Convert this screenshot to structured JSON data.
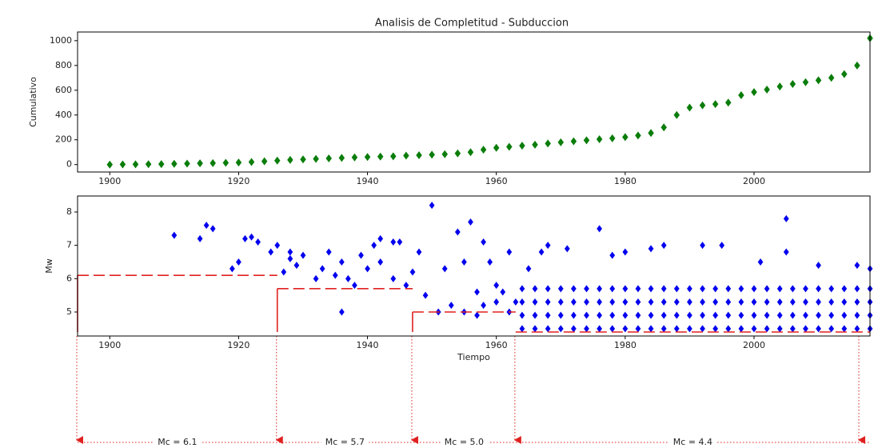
{
  "chart_data": [
    {
      "type": "scatter",
      "title": "Analisis de Completitud - Subduccion",
      "y_label": "Cumulativo",
      "series": [
        {
          "color": "#0a7d0a",
          "x": [
            1900,
            1902,
            1904,
            1906,
            1908,
            1910,
            1912,
            1914,
            1916,
            1918,
            1920,
            1922,
            1924,
            1926,
            1928,
            1930,
            1932,
            1934,
            1936,
            1938,
            1940,
            1942,
            1944,
            1946,
            1948,
            1950,
            1952,
            1954,
            1956,
            1958,
            1960,
            1962,
            1964,
            1966,
            1968,
            1970,
            1972,
            1974,
            1976,
            1978,
            1980,
            1982,
            1984,
            1986,
            1988,
            1990,
            1992,
            1994,
            1996,
            1998,
            2000,
            2002,
            2004,
            2006,
            2008,
            2010,
            2012,
            2014,
            2016,
            2018
          ],
          "values": [
            0,
            1,
            2,
            3,
            4,
            6,
            8,
            10,
            12,
            14,
            17,
            21,
            26,
            32,
            38,
            42,
            46,
            50,
            54,
            58,
            61,
            64,
            67,
            72,
            76,
            80,
            84,
            90,
            100,
            120,
            135,
            143,
            152,
            160,
            170,
            180,
            188,
            196,
            205,
            212,
            222,
            235,
            255,
            300,
            400,
            460,
            478,
            488,
            500,
            560,
            585,
            605,
            630,
            650,
            665,
            680,
            700,
            730,
            800,
            1020
          ]
        }
      ],
      "xlim": [
        1895,
        2018
      ],
      "xticks": [
        1900,
        1920,
        1940,
        1960,
        1980,
        2000
      ],
      "ylim": [
        -60,
        1070
      ],
      "yticks": [
        0,
        200,
        400,
        600,
        800,
        1000
      ]
    },
    {
      "type": "scatter",
      "x_label": "Tiempo",
      "y_label": "Mw",
      "series": [
        {
          "color": "#0000ee",
          "x": [
            1910,
            1914,
            1915,
            1916,
            1919,
            1920,
            1921,
            1922,
            1923,
            1925,
            1926,
            1927,
            1928,
            1928,
            1929,
            1930,
            1932,
            1933,
            1934,
            1935,
            1936,
            1936,
            1937,
            1938,
            1939,
            1940,
            1941,
            1942,
            1942,
            1944,
            1945,
            1944,
            1946,
            1947,
            1948,
            1949,
            1950,
            1951,
            1952,
            1953,
            1954,
            1955,
            1956,
            1957,
            1958,
            1959,
            1960,
            1962,
            1963,
            1965,
            1967,
            1968,
            1971,
            1976,
            1978,
            1980,
            1984,
            1986,
            1992,
            1995,
            2001,
            2005,
            2005,
            2010,
            2016,
            2018,
            1955,
            1958,
            1960,
            1962,
            1961,
            1957,
            1964,
            1964,
            1964,
            1964,
            1966,
            1966,
            1966,
            1966,
            1968,
            1968,
            1968,
            1968,
            1970,
            1970,
            1970,
            1970,
            1972,
            1972,
            1972,
            1972,
            1974,
            1974,
            1974,
            1974,
            1976,
            1976,
            1976,
            1976,
            1978,
            1978,
            1978,
            1978,
            1980,
            1980,
            1980,
            1980,
            1982,
            1982,
            1982,
            1982,
            1984,
            1984,
            1984,
            1984,
            1986,
            1986,
            1986,
            1986,
            1988,
            1988,
            1988,
            1988,
            1990,
            1990,
            1990,
            1990,
            1992,
            1992,
            1992,
            1992,
            1994,
            1994,
            1994,
            1994,
            1996,
            1996,
            1996,
            1996,
            1998,
            1998,
            1998,
            1998,
            2000,
            2000,
            2000,
            2000,
            2002,
            2002,
            2002,
            2002,
            2004,
            2004,
            2004,
            2004,
            2006,
            2006,
            2006,
            2006,
            2008,
            2008,
            2008,
            2008,
            2010,
            2010,
            2010,
            2010,
            2012,
            2012,
            2012,
            2012,
            2014,
            2014,
            2014,
            2014,
            2016,
            2016,
            2016,
            2016,
            2018,
            2018,
            2018,
            2018
          ],
          "values": [
            7.3,
            7.2,
            7.6,
            7.5,
            6.3,
            6.5,
            7.2,
            7.25,
            7.1,
            6.8,
            7.0,
            6.2,
            6.6,
            6.8,
            6.4,
            6.7,
            6.0,
            6.3,
            6.8,
            6.1,
            5.0,
            6.5,
            6.0,
            5.8,
            6.7,
            6.3,
            7.0,
            7.2,
            6.5,
            7.1,
            7.1,
            6.0,
            5.8,
            6.2,
            6.8,
            5.5,
            8.2,
            5.0,
            6.3,
            5.2,
            7.4,
            6.5,
            7.7,
            5.6,
            7.1,
            6.5,
            5.8,
            6.8,
            5.3,
            6.3,
            6.8,
            7.0,
            6.9,
            7.5,
            6.7,
            6.8,
            6.9,
            7.0,
            7.0,
            7.0,
            6.5,
            7.8,
            6.8,
            6.4,
            6.4,
            6.3,
            5.0,
            5.2,
            5.3,
            5.0,
            5.6,
            4.9,
            4.5,
            4.9,
            5.3,
            5.7,
            4.5,
            4.9,
            5.3,
            5.7,
            4.5,
            4.9,
            5.3,
            5.7,
            4.5,
            4.9,
            5.3,
            5.7,
            4.5,
            4.9,
            5.3,
            5.7,
            4.5,
            4.9,
            5.3,
            5.7,
            4.5,
            4.9,
            5.3,
            5.7,
            4.5,
            4.9,
            5.3,
            5.7,
            4.5,
            4.9,
            5.3,
            5.7,
            4.5,
            4.9,
            5.3,
            5.7,
            4.5,
            4.9,
            5.3,
            5.7,
            4.5,
            4.9,
            5.3,
            5.7,
            4.5,
            4.9,
            5.3,
            5.7,
            4.5,
            4.9,
            5.3,
            5.7,
            4.5,
            4.9,
            5.3,
            5.7,
            4.5,
            4.9,
            5.3,
            5.7,
            4.5,
            4.9,
            5.3,
            5.7,
            4.5,
            4.9,
            5.3,
            5.7,
            4.5,
            4.9,
            5.3,
            5.7,
            4.5,
            4.9,
            5.3,
            5.7,
            4.5,
            4.9,
            5.3,
            5.7,
            4.5,
            4.9,
            5.3,
            5.7,
            4.5,
            4.9,
            5.3,
            5.7,
            4.5,
            4.9,
            5.3,
            5.7,
            4.5,
            4.9,
            5.3,
            5.7,
            4.5,
            4.9,
            5.3,
            5.7,
            4.5,
            4.9,
            5.3,
            5.7,
            4.5,
            4.9,
            5.3,
            5.7
          ]
        }
      ],
      "mc_levels": [
        {
          "start": 1895,
          "end": 1926,
          "value": 6.1,
          "label": "Mc = 6.1"
        },
        {
          "start": 1926,
          "end": 1947,
          "value": 5.7,
          "label": "Mc = 5.7"
        },
        {
          "start": 1947,
          "end": 1963,
          "value": 5.0,
          "label": "Mc = 5.0"
        },
        {
          "start": 1963,
          "end": 2018,
          "value": 4.4,
          "label": "Mc = 4.4"
        }
      ],
      "mc_color": "#e02020",
      "xlim": [
        1895,
        2018
      ],
      "xticks": [
        1900,
        1920,
        1940,
        1960,
        1980,
        2000
      ],
      "ylim": [
        4.28,
        8.48
      ],
      "yticks": [
        5,
        6,
        7,
        8
      ]
    }
  ]
}
